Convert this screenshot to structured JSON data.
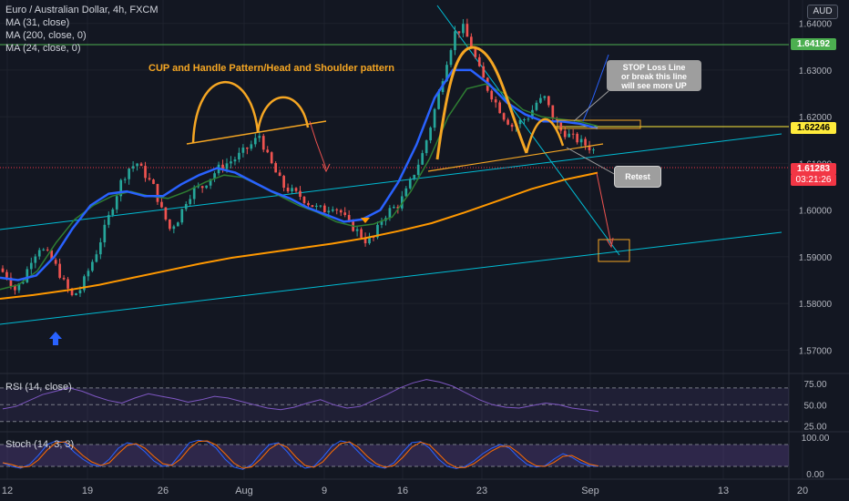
{
  "header": {
    "symbol_title": "Euro / Australian Dollar, 4h, FXCM",
    "indicators": [
      "MA (31, close)",
      "MA (200, close, 0)",
      "MA (24, close, 0)"
    ],
    "currency": "AUD"
  },
  "annotations": {
    "pattern_title": "CUP and Handle Pattern/Head and Shoulder pattern",
    "stop_loss_note": [
      "STOP Loss Line",
      "or break this line",
      "will see more UP"
    ],
    "retest_note": "Retest"
  },
  "price_tags": {
    "top_line": "1.64192",
    "mid_line": "1.62246",
    "last_price": "1.61283",
    "countdown": "03:21:26"
  },
  "panes": {
    "rsi_label": "RSI (14, close)",
    "stoch_label": "Stoch (14, 3, 3)"
  },
  "colors": {
    "background": "#131722",
    "up_candle": "#26a69a",
    "down_candle": "#ef5350",
    "ma31": "#2962ff",
    "ma200": "#ff9800",
    "ma24": "#2e7d32",
    "trend_lines": "#00bcd4",
    "pattern": "#f5a623",
    "rsi": "#7e57c2"
  },
  "chart_data": [
    {
      "type": "candlestick",
      "y_ticks": [
        "1.64000",
        "1.63000",
        "1.62000",
        "1.61000",
        "1.60000",
        "1.59000",
        "1.58000",
        "1.57000"
      ],
      "ylim": [
        1.565,
        1.645
      ],
      "x_ticks": [
        "12",
        "19",
        "26",
        "Aug",
        "9",
        "16",
        "23",
        "Sep",
        "13",
        "20"
      ],
      "close_path": [
        1.5875,
        1.586,
        1.583,
        1.585,
        1.5895,
        1.592,
        1.5905,
        1.588,
        1.5845,
        1.5815,
        1.583,
        1.587,
        1.591,
        1.596,
        1.601,
        1.606,
        1.609,
        1.61,
        1.6075,
        1.605,
        1.6,
        1.596,
        1.598,
        1.602,
        1.6045,
        1.605,
        1.607,
        1.609,
        1.61,
        1.611,
        1.6125,
        1.614,
        1.616,
        1.6115,
        1.608,
        1.605,
        1.604,
        1.603,
        1.6015,
        1.6005,
        1.6,
        1.601,
        1.5995,
        1.597,
        1.5955,
        1.5935,
        1.594,
        1.598,
        1.6,
        1.601,
        1.604,
        1.608,
        1.612,
        1.618,
        1.625,
        1.632,
        1.638,
        1.639,
        1.635,
        1.63,
        1.626,
        1.623,
        1.62,
        1.618,
        1.619,
        1.62,
        1.623,
        1.624,
        1.62,
        1.617,
        1.616,
        1.615,
        1.614,
        1.6128
      ],
      "ma31_path": [
        1.5855,
        1.585,
        1.586,
        1.59,
        1.596,
        1.601,
        1.6035,
        1.604,
        1.603,
        1.603,
        1.6055,
        1.6075,
        1.609,
        1.608,
        1.606,
        1.604,
        1.6025,
        1.6005,
        1.599,
        1.5975,
        1.598,
        1.6,
        1.606,
        1.614,
        1.624,
        1.63,
        1.63,
        1.627,
        1.623,
        1.6205,
        1.619,
        1.619,
        1.6185,
        1.6175
      ],
      "ma200_path": [
        1.581,
        1.5818,
        1.5828,
        1.584,
        1.5855,
        1.587,
        1.5885,
        1.5898,
        1.5908,
        1.5918,
        1.5928,
        1.594,
        1.5955,
        1.5972,
        1.5995,
        1.602,
        1.6045,
        1.6065,
        1.608
      ],
      "ma24_path": [
        1.583,
        1.584,
        1.587,
        1.593,
        1.598,
        1.601,
        1.603,
        1.604,
        1.603,
        1.6025,
        1.604,
        1.606,
        1.6075,
        1.607,
        1.605,
        1.603,
        1.601,
        1.5995,
        1.5975,
        1.5965,
        1.597,
        1.5985,
        1.604,
        1.611,
        1.62,
        1.626,
        1.627,
        1.625,
        1.6215,
        1.62,
        1.6195,
        1.619,
        1.618
      ]
    },
    {
      "type": "line",
      "name": "RSI (14, close)",
      "y_ticks": [
        "75.00",
        "50.00",
        "25.00"
      ],
      "ylim": [
        20,
        85
      ],
      "values": [
        45,
        48,
        55,
        62,
        66,
        70,
        66,
        60,
        55,
        52,
        58,
        63,
        60,
        57,
        53,
        56,
        60,
        58,
        54,
        50,
        46,
        44,
        47,
        52,
        56,
        50,
        46,
        48,
        55,
        62,
        70,
        76,
        80,
        77,
        72,
        64,
        56,
        50,
        47,
        46,
        49,
        52,
        50,
        46,
        44,
        42
      ]
    },
    {
      "type": "line",
      "name": "Stoch (14, 3, 3)",
      "y_ticks": [
        "100.00",
        "0.00"
      ],
      "ylim": [
        -10,
        110
      ],
      "values": [
        30,
        20,
        15,
        25,
        50,
        80,
        90,
        85,
        60,
        40,
        25,
        20,
        40,
        70,
        85,
        80,
        60,
        35,
        20,
        25,
        55,
        85,
        92,
        88,
        70,
        40,
        18,
        12,
        25,
        55,
        80,
        85,
        60,
        30,
        15,
        20,
        45,
        75,
        90,
        85,
        60,
        35,
        20,
        15,
        30,
        60,
        85,
        88,
        70,
        40,
        20,
        14,
        20,
        35,
        55,
        70,
        80,
        70,
        45,
        25,
        18,
        22,
        40,
        55,
        45,
        30,
        22,
        20
      ]
    }
  ]
}
